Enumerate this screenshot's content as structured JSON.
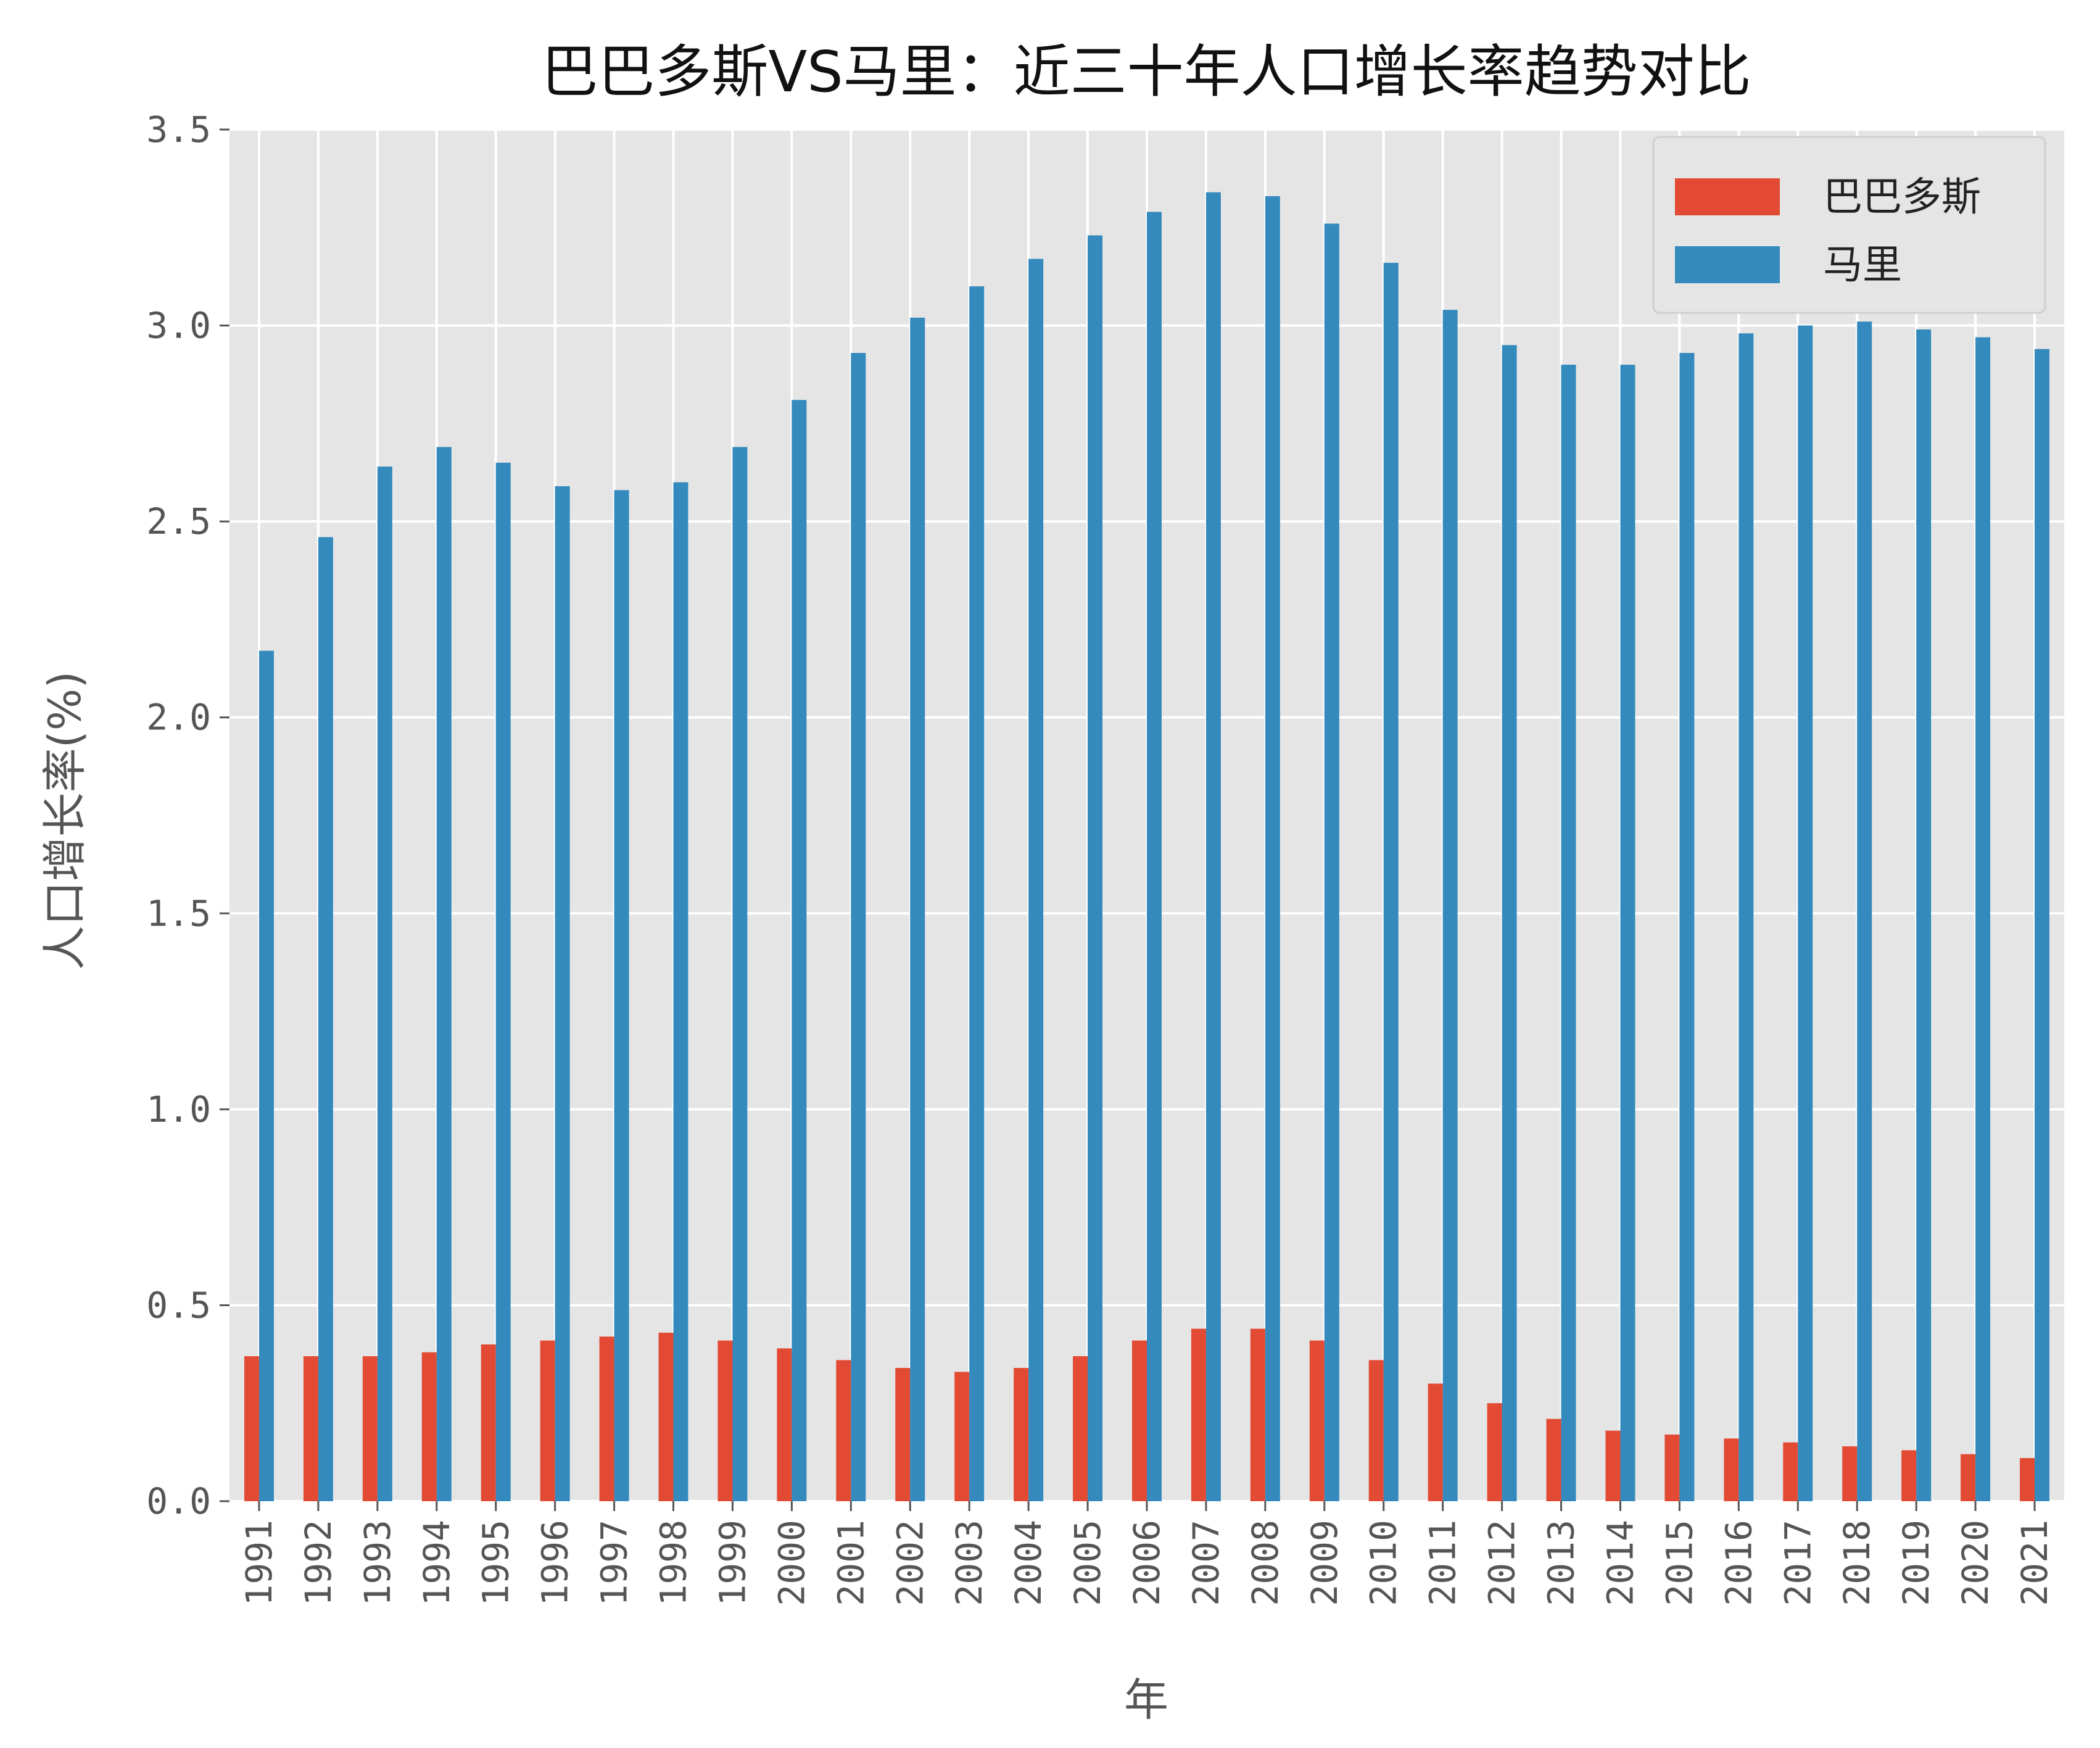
{
  "chart_data": {
    "type": "bar",
    "title": "巴巴多斯VS马里：近三十年人口增长率趋势对比",
    "xlabel": "年",
    "ylabel": "人口增长率(%)",
    "ylim": [
      0,
      3.5
    ],
    "yticks": [
      "0.0",
      "0.5",
      "1.0",
      "1.5",
      "2.0",
      "2.5",
      "3.0",
      "3.5"
    ],
    "grid": true,
    "legend_position": "top-right",
    "categories": [
      "1991",
      "1992",
      "1993",
      "1994",
      "1995",
      "1996",
      "1997",
      "1998",
      "1999",
      "2000",
      "2001",
      "2002",
      "2003",
      "2004",
      "2005",
      "2006",
      "2007",
      "2008",
      "2009",
      "2010",
      "2011",
      "2012",
      "2013",
      "2014",
      "2015",
      "2016",
      "2017",
      "2018",
      "2019",
      "2020",
      "2021"
    ],
    "series": [
      {
        "name": "巴巴多斯",
        "color": "#E24A33",
        "values": [
          0.37,
          0.37,
          0.37,
          0.38,
          0.4,
          0.41,
          0.42,
          0.43,
          0.41,
          0.39,
          0.36,
          0.34,
          0.33,
          0.34,
          0.37,
          0.41,
          0.44,
          0.44,
          0.41,
          0.36,
          0.3,
          0.25,
          0.21,
          0.18,
          0.17,
          0.16,
          0.15,
          0.14,
          0.13,
          0.12,
          0.11
        ]
      },
      {
        "name": "马里",
        "color": "#348ABD",
        "values": [
          2.17,
          2.46,
          2.64,
          2.69,
          2.65,
          2.59,
          2.58,
          2.6,
          2.69,
          2.81,
          2.93,
          3.02,
          3.1,
          3.17,
          3.23,
          3.29,
          3.34,
          3.33,
          3.26,
          3.16,
          3.04,
          2.95,
          2.9,
          2.9,
          2.93,
          2.98,
          3.0,
          3.01,
          2.99,
          2.97,
          2.94
        ]
      }
    ]
  }
}
